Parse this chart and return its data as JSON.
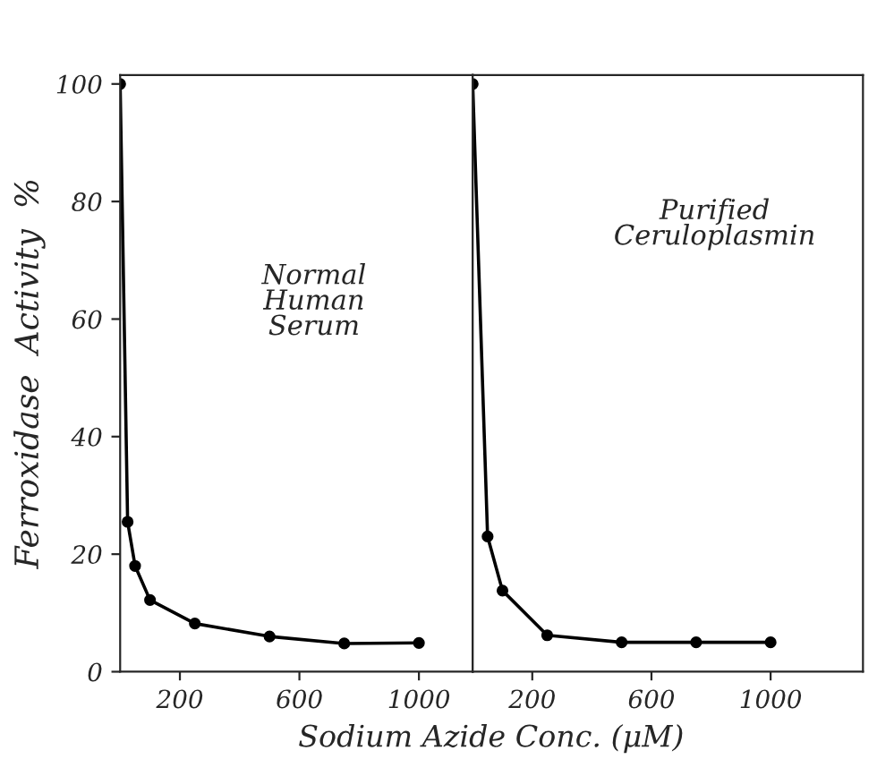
{
  "chart_data": [
    {
      "type": "line",
      "ylabel": "Ferroxidase  Activity  %",
      "xlabel": "Sodium Azide Conc. (μM)",
      "annotations": [
        "Normal\nHuman\nSerum"
      ],
      "series": [
        {
          "color": "#000000",
          "x": [
            0,
            25,
            50,
            100,
            250,
            500,
            750,
            1000
          ],
          "values": [
            100,
            25.5,
            18,
            12.2,
            8.2,
            6,
            4.8,
            4.9
          ]
        }
      ],
      "xlim": [
        0,
        1180
      ],
      "xticks": [
        200,
        600,
        1000
      ],
      "ylim": [
        0,
        101.5
      ],
      "yticks": [
        0,
        20,
        40,
        60,
        80,
        100
      ],
      "marker": "circle",
      "line_style": "solid",
      "grid": false,
      "legend": false
    },
    {
      "type": "line",
      "annotations": [
        "Purified\nCeruloplasmin"
      ],
      "series": [
        {
          "color": "#000000",
          "x": [
            0,
            50,
            100,
            250,
            500,
            750,
            1000
          ],
          "values": [
            100,
            23,
            13.8,
            6.2,
            5,
            5,
            5
          ]
        }
      ],
      "xlim": [
        0,
        1310
      ],
      "xticks": [
        200,
        600,
        1000
      ],
      "ylim": [
        0,
        101.5
      ],
      "tick_labels": "x",
      "marker": "circle",
      "line_style": "solid",
      "grid": false,
      "legend": false
    }
  ]
}
